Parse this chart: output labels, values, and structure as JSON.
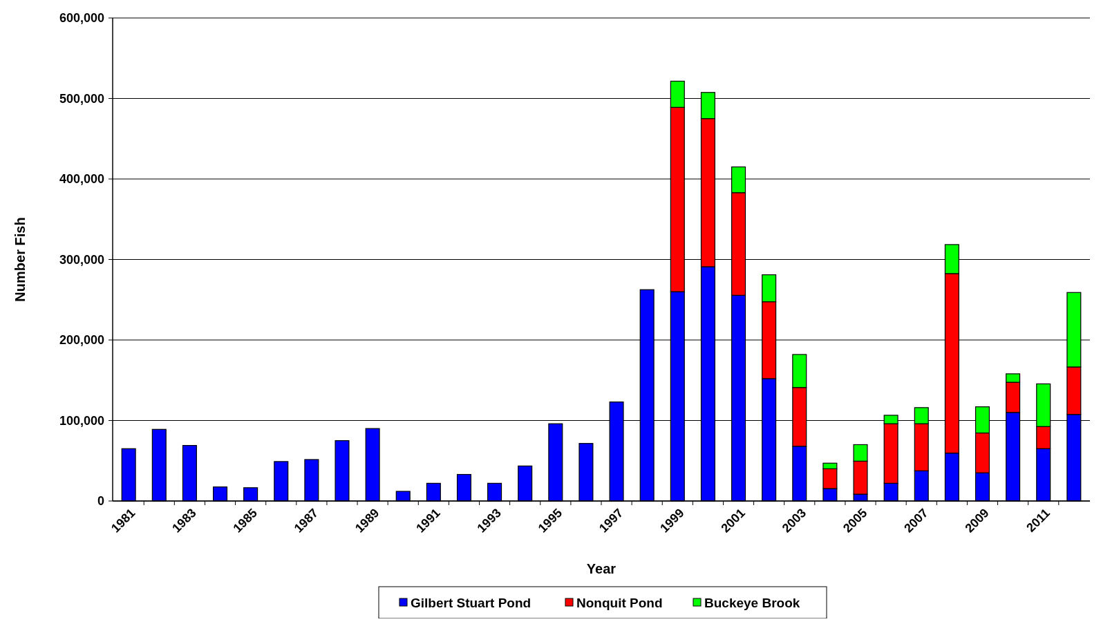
{
  "chart_data": {
    "type": "bar",
    "stacked": true,
    "xlabel": "Year",
    "ylabel": "Number Fish",
    "categories": [
      "1981",
      null,
      "1983",
      null,
      "1985",
      null,
      "1987",
      null,
      "1989",
      null,
      "1991",
      null,
      "1993",
      null,
      "1995",
      null,
      "1997",
      null,
      "1999",
      null,
      "2001",
      null,
      "2003",
      null,
      "2005",
      null,
      "2007",
      null,
      "2009",
      null,
      "2011",
      null
    ],
    "series": [
      {
        "name": "Gilbert Stuart Pond",
        "color": "#0000ff",
        "values": [
          65000,
          89000,
          69000,
          17500,
          16500,
          49000,
          51500,
          75000,
          90000,
          12000,
          22000,
          33000,
          22000,
          43500,
          96000,
          71500,
          123000,
          262500,
          260000,
          291000,
          255500,
          152000,
          68000,
          15500,
          8500,
          22000,
          37500,
          59500,
          35000,
          110000,
          65000,
          107500
        ]
      },
      {
        "name": "Nonquit Pond",
        "color": "#ff0000",
        "values": [
          null,
          null,
          null,
          null,
          null,
          null,
          null,
          null,
          null,
          null,
          null,
          null,
          null,
          null,
          null,
          null,
          null,
          null,
          229000,
          184000,
          127500,
          95500,
          73000,
          24500,
          41000,
          74000,
          58500,
          223000,
          49500,
          37500,
          27500,
          59000
        ]
      },
      {
        "name": "Buckeye Brook",
        "color": "#00ff00",
        "values": [
          null,
          null,
          null,
          null,
          null,
          null,
          null,
          null,
          null,
          null,
          null,
          null,
          null,
          null,
          null,
          null,
          null,
          null,
          32500,
          32500,
          32000,
          33500,
          41000,
          7000,
          20500,
          10500,
          20000,
          36000,
          32500,
          10500,
          53000,
          92500
        ]
      }
    ],
    "ylim": [
      0,
      600000
    ],
    "yticks": [
      {
        "value": 0,
        "label": "0"
      },
      {
        "value": 100000,
        "label": "100,000"
      },
      {
        "value": 200000,
        "label": "200,000"
      },
      {
        "value": 300000,
        "label": "300,000"
      },
      {
        "value": 400000,
        "label": "400,000"
      },
      {
        "value": 500000,
        "label": "500,000"
      },
      {
        "value": 600000,
        "label": "600,000"
      }
    ],
    "grid": "y",
    "legend": "bottom"
  }
}
